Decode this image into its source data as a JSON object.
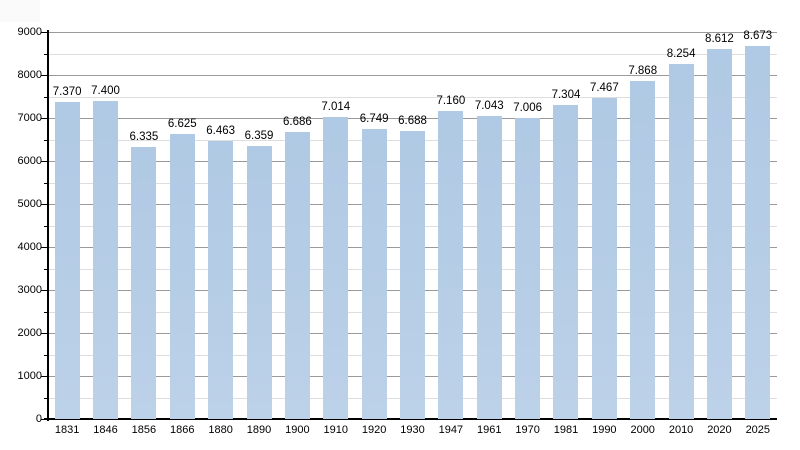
{
  "chart_data": {
    "type": "bar",
    "title": "",
    "xlabel": "",
    "ylabel": "",
    "categories": [
      "1831",
      "1846",
      "1856",
      "1866",
      "1880",
      "1890",
      "1900",
      "1910",
      "1920",
      "1930",
      "1947",
      "1961",
      "1970",
      "1981",
      "1990",
      "2000",
      "2010",
      "2020",
      "2025"
    ],
    "values": [
      7370,
      7400,
      6335,
      6625,
      6463,
      6359,
      6686,
      7014,
      6749,
      6688,
      7160,
      7043,
      7006,
      7304,
      7467,
      7868,
      8254,
      8612,
      8673
    ],
    "value_labels": [
      "7.370",
      "7.400",
      "6.335",
      "6.625",
      "6.463",
      "6.359",
      "6.686",
      "7.014",
      "6.749",
      "6.688",
      "7.160",
      "7.043",
      "7.006",
      "7.304",
      "7.467",
      "7.868",
      "8.254",
      "8.612",
      "8.673"
    ],
    "ylim": [
      0,
      9000
    ],
    "y_major_step": 1000,
    "y_minor_step": 500,
    "y_tick_labels": [
      "0",
      "1000",
      "2000",
      "3000",
      "4000",
      "5000",
      "6000",
      "7000",
      "8000",
      "9000"
    ],
    "grid": true,
    "legend": "none",
    "colors": {
      "bar": "#b4cbe5",
      "major_grid": "#9a9a9a",
      "minor_grid": "#dedede",
      "axis": "#000000",
      "text": "#000000",
      "background": "#ffffff"
    }
  }
}
